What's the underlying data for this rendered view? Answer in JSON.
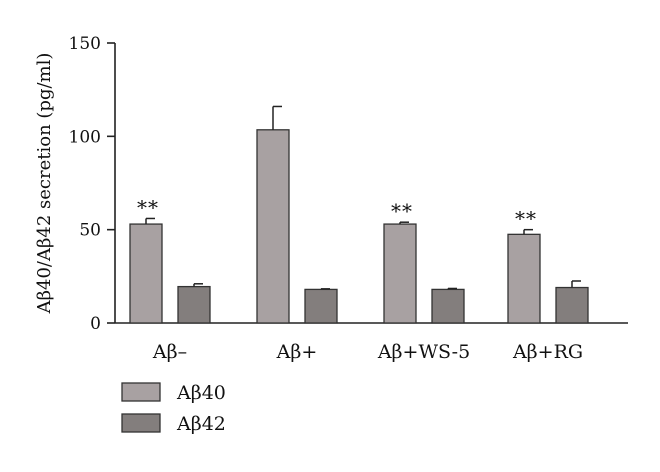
{
  "chart_data": {
    "type": "bar",
    "ylabel": "Aβ40/Aβ42 secretion (pg/ml)",
    "xlabel": "",
    "ylim": [
      0,
      150
    ],
    "yticks": [
      0,
      50,
      100,
      150
    ],
    "categories": [
      "Aβ–",
      "Aβ+",
      "Aβ+WS-5",
      "Aβ+RG"
    ],
    "series": [
      {
        "name": "Aβ40",
        "color": "#a8a1a2",
        "values": [
          53,
          103.5,
          53,
          47.5
        ],
        "errors": [
          3,
          12.5,
          1,
          2.5
        ]
      },
      {
        "name": "Aβ42",
        "color": "#837e7d",
        "values": [
          19.5,
          18,
          18,
          19
        ],
        "errors": [
          1.5,
          0.3,
          0.5,
          3.5
        ]
      }
    ],
    "annotations": [
      "**",
      "",
      "**",
      "**"
    ],
    "grid": false,
    "legend_position": "bottom-left"
  }
}
